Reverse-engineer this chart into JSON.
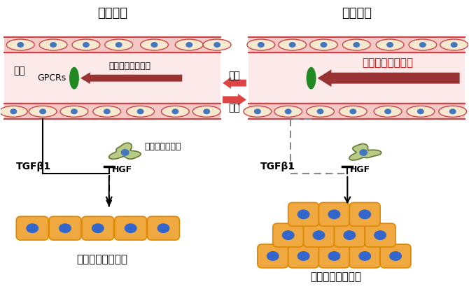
{
  "title_left": "定常状態",
  "title_right": "再生過程",
  "label_sinusoid": "類洞",
  "label_arrow_start": "開始",
  "label_arrow_stop": "停止",
  "label_shear_increase": "せん断応力の増加",
  "label_gpcrs": "GPCRs",
  "label_shear_steady": "一定のせん断応力",
  "label_tgfb1_left": "TGFβ1",
  "label_tgfb1_right": "TGFβ1",
  "label_hgf_left": "HGF",
  "label_hgf_right": "HGF",
  "label_satellite": "サテライト細胞",
  "label_bottom_left": "肝細胞の増殖抑制",
  "label_bottom_right": "肝細胞の増殖促進",
  "bg_color": "#ffffff",
  "sinusoid_fill_light": "#fceaea",
  "sinusoid_fill_mid": "#f5c8c8",
  "cell_outline_color": "#cc4444",
  "endothelial_body": "#f7e8d0",
  "cell_nucleus_color": "#4477bb",
  "gpcr_color": "#228822",
  "satellite_body": "#b8cc88",
  "satellite_outline": "#667733",
  "satellite_nucleus": "#4477bb",
  "hepatocyte_body": "#f0a840",
  "hepatocyte_outline": "#dd8800",
  "hepatocyte_nucleus": "#3366cc",
  "arrow_mid_color": "#dd4444",
  "arrow_shear_left_color": "#993333",
  "arrow_shear_right_color": "#993333",
  "text_red": "#cc0000",
  "black": "#000000",
  "gray_dash": "#888888"
}
